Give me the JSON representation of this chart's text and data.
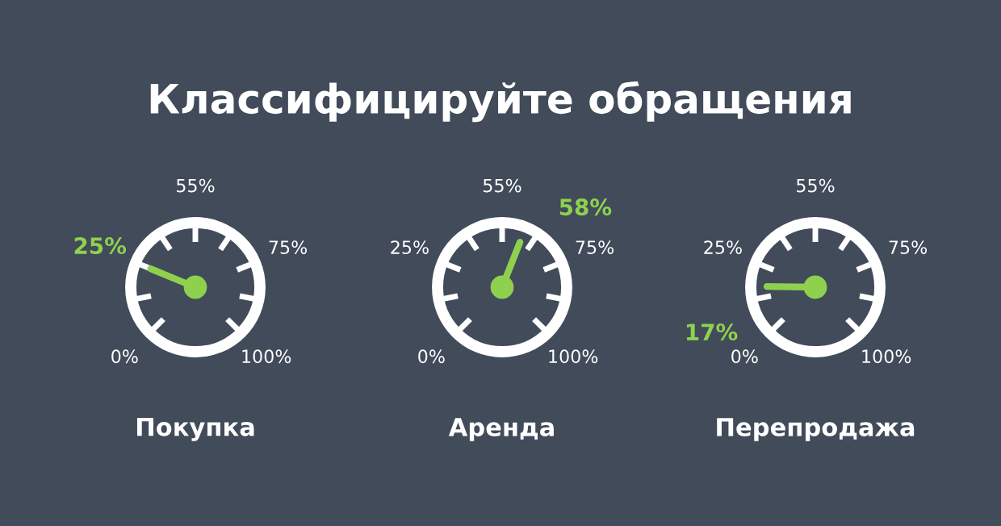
{
  "chart_data": [
    {
      "type": "other",
      "title": "Классифицируйте обращения",
      "xlabel": "Покупка",
      "annotations": [
        "0%",
        "55%",
        "75%",
        "100%"
      ],
      "values": [
        25
      ],
      "value_labels": [
        "25%"
      ],
      "color": "#8fd14f"
    },
    {
      "type": "other",
      "xlabel": "Аренда",
      "annotations": [
        "0%",
        "25%",
        "55%",
        "75%",
        "100%"
      ],
      "values": [
        58
      ],
      "value_labels": [
        "58%"
      ],
      "color": "#8fd14f"
    },
    {
      "type": "other",
      "xlabel": "Перепродажа",
      "annotations": [
        "0%",
        "25%",
        "55%",
        "75%",
        "100%"
      ],
      "values": [
        17
      ],
      "value_labels": [
        "17%"
      ],
      "color": "#8fd14f"
    }
  ]
}
